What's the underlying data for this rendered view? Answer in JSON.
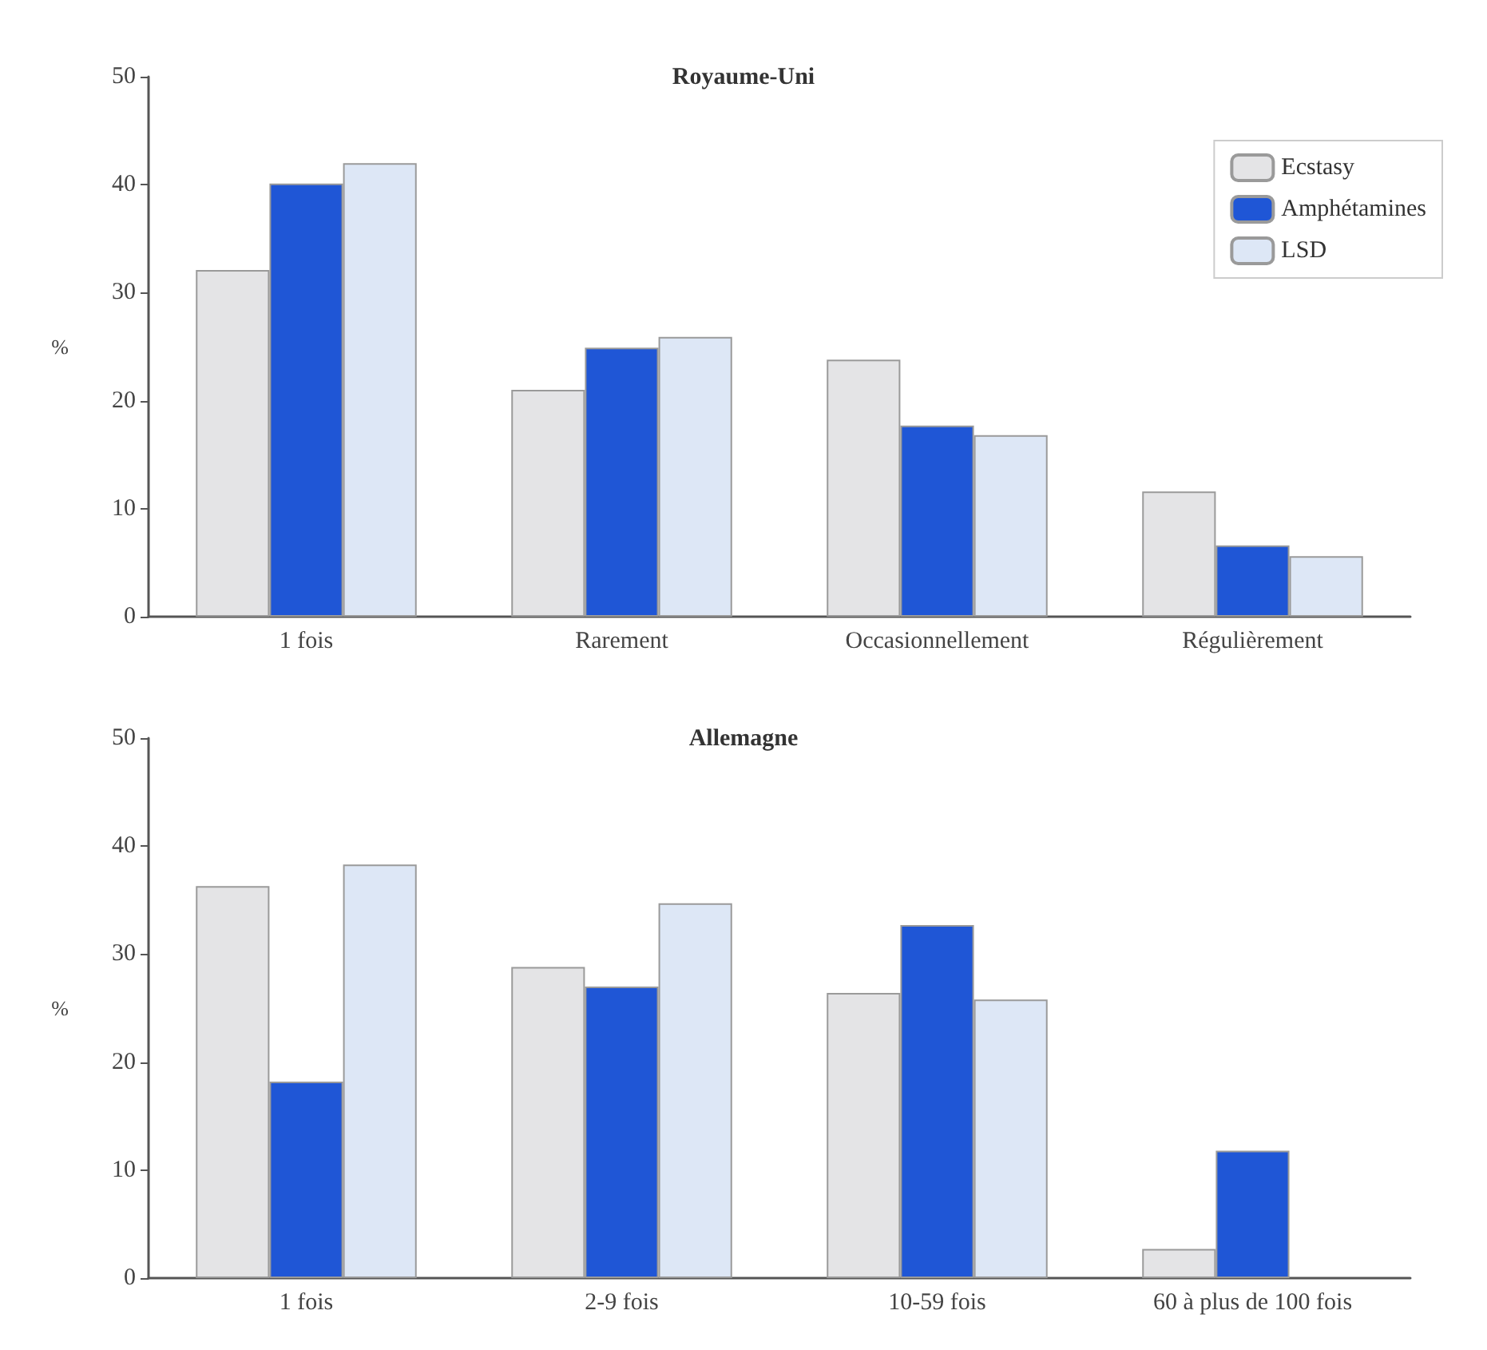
{
  "chart_data": [
    {
      "type": "bar",
      "title": "Royaume-Uni",
      "ylabel": "%",
      "categories": [
        "1 fois",
        "Rarement",
        "Occasionnellement",
        "Régulièrement"
      ],
      "series": [
        {
          "name": "Ecstasy",
          "color": "#e4e4e6",
          "values": [
            32.1,
            21.0,
            23.8,
            11.6
          ]
        },
        {
          "name": "Amphétamines",
          "color": "#1f56d6",
          "values": [
            40.1,
            24.9,
            17.7,
            6.6
          ]
        },
        {
          "name": "LSD",
          "color": "#dde7f6",
          "values": [
            42.0,
            25.9,
            16.8,
            5.6
          ]
        }
      ],
      "ylim": [
        0,
        50
      ],
      "yticks": [
        0,
        10,
        20,
        30,
        40,
        50
      ],
      "grid": false,
      "legend": "top right"
    },
    {
      "type": "bar",
      "title": "Allemagne",
      "ylabel": "%",
      "categories": [
        "1 fois",
        "2-9 fois",
        "10-59 fois",
        "60 à plus de 100 fois"
      ],
      "series": [
        {
          "color": "#e4e4e6",
          "values": [
            36.3,
            28.8,
            26.4,
            2.7
          ]
        },
        {
          "color": "#1f56d6",
          "values": [
            18.2,
            27.0,
            32.7,
            11.8
          ]
        },
        {
          "color": "#dde7f6",
          "values": [
            38.3,
            34.7,
            25.8,
            null
          ]
        }
      ],
      "ylim": [
        0,
        50
      ],
      "yticks": [
        0,
        10,
        20,
        30,
        40,
        50
      ],
      "grid": false,
      "legend": false
    }
  ]
}
